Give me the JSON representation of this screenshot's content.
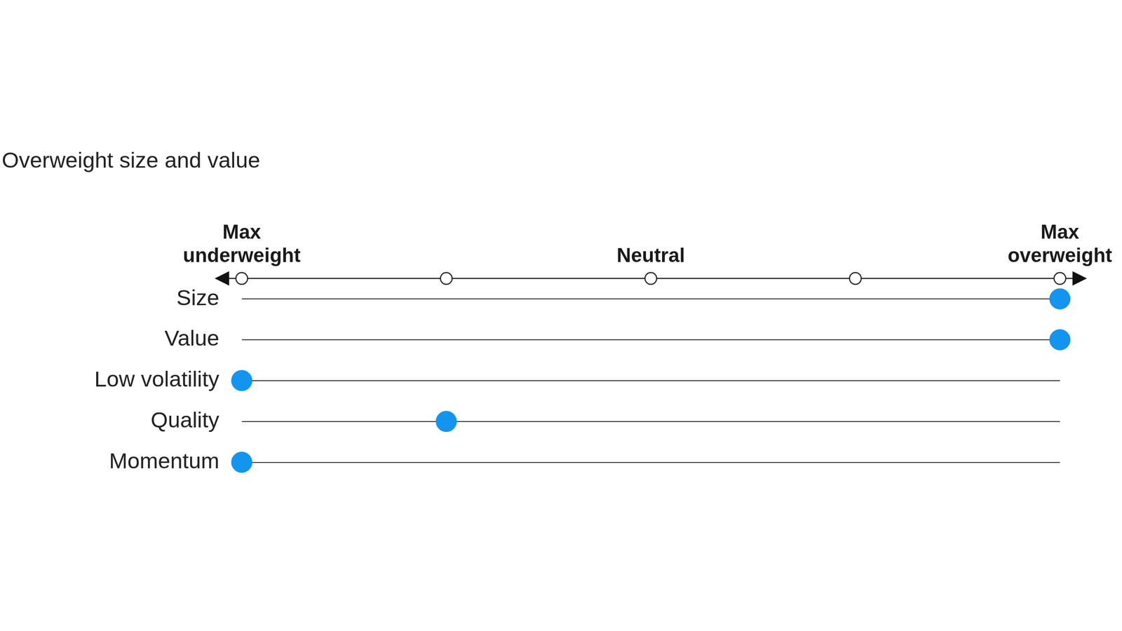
{
  "chart_data": {
    "type": "dot",
    "title": "Overweight size and value",
    "categories": [
      "Size",
      "Value",
      "Low volatility",
      "Quality",
      "Momentum"
    ],
    "values": [
      2,
      2,
      -2,
      -1,
      -2
    ],
    "color": "#1394ee",
    "xlim": [
      -2,
      2
    ],
    "xticks": [
      {
        "value": -2,
        "label": "Max underweight"
      },
      {
        "value": -1,
        "label": null
      },
      {
        "value": 0,
        "label": "Neutral"
      },
      {
        "value": 1,
        "label": null
      },
      {
        "value": 2,
        "label": "Max overweight"
      }
    ],
    "orientation": "horizontal",
    "grid": true,
    "marker": "circle"
  }
}
